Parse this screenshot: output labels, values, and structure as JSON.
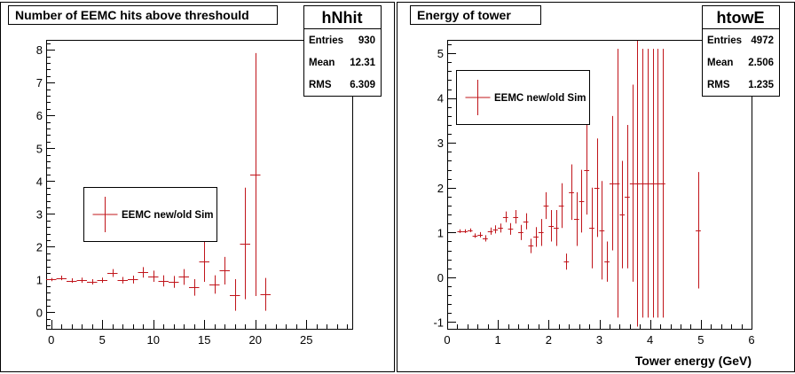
{
  "colors": {
    "marker": "#c0141a",
    "frame": "#000000",
    "background": "#ffffff"
  },
  "chart_data": [
    {
      "type": "scatter",
      "style": "histogram-with-error-bars",
      "title": "Number of EEMC hits above threshould",
      "stats_name": "hNhit",
      "stats": [
        {
          "label": "Entries",
          "value": "930"
        },
        {
          "label": "Mean",
          "value": "12.31"
        },
        {
          "label": "RMS",
          "value": "6.309"
        }
      ],
      "legend": {
        "entries": [
          "EEMC new/old Sim"
        ],
        "placement": "middle-left"
      },
      "xlabel": "",
      "ylabel": "",
      "xlim": [
        -0.5,
        29.5
      ],
      "ylim": [
        -0.5,
        8.3
      ],
      "xticks": [
        0,
        5,
        10,
        15,
        20,
        25
      ],
      "xtick_labels": [
        "0",
        "5",
        "10",
        "15",
        "20",
        "25"
      ],
      "yticks": [
        0,
        1,
        2,
        3,
        4,
        5,
        6,
        7,
        8
      ],
      "ytick_labels": [
        "0",
        "1",
        "2",
        "3",
        "4",
        "5",
        "6",
        "7",
        "8"
      ],
      "grid": false,
      "bin_width": 1,
      "series": [
        {
          "x": [
            0,
            1,
            2,
            3,
            4,
            5,
            6,
            7,
            8,
            9,
            10,
            11,
            12,
            13,
            14,
            15,
            16,
            17,
            18,
            19,
            20,
            21
          ],
          "y": [
            1.0,
            1.05,
            0.97,
            0.98,
            0.93,
            0.98,
            1.2,
            0.98,
            1.0,
            1.22,
            1.1,
            0.96,
            0.93,
            1.08,
            0.76,
            1.55,
            0.85,
            1.27,
            0.53,
            2.1,
            4.2,
            0.55
          ],
          "err": [
            0.05,
            0.07,
            0.07,
            0.08,
            0.08,
            0.08,
            0.12,
            0.1,
            0.12,
            0.16,
            0.17,
            0.17,
            0.18,
            0.24,
            0.25,
            0.62,
            0.28,
            0.42,
            0.48,
            1.7,
            3.7,
            0.5
          ]
        }
      ]
    },
    {
      "type": "scatter",
      "style": "histogram-with-error-bars",
      "title": "Energy of tower",
      "stats_name": "htowE",
      "stats": [
        {
          "label": "Entries",
          "value": "4972"
        },
        {
          "label": "Mean",
          "value": "2.506"
        },
        {
          "label": "RMS",
          "value": "1.235"
        }
      ],
      "legend": {
        "entries": [
          "EEMC new/old Sim"
        ],
        "placement": "top-left"
      },
      "xlabel": "Tower energy (GeV)",
      "ylabel": "",
      "xlim": [
        0,
        6
      ],
      "ylim": [
        -1.15,
        5.3
      ],
      "xticks": [
        0,
        1,
        2,
        3,
        4,
        5,
        6
      ],
      "xtick_labels": [
        "0",
        "1",
        "2",
        "3",
        "4",
        "5",
        "6"
      ],
      "yticks": [
        -1,
        0,
        1,
        2,
        3,
        4,
        5
      ],
      "ytick_labels": [
        "-1",
        "0",
        "1",
        "2",
        "3",
        "4",
        "5"
      ],
      "grid": false,
      "bin_width": 0.1,
      "series": [
        {
          "x": [
            0.25,
            0.35,
            0.45,
            0.55,
            0.65,
            0.75,
            0.85,
            0.95,
            1.05,
            1.15,
            1.25,
            1.35,
            1.45,
            1.55,
            1.65,
            1.75,
            1.85,
            1.95,
            2.05,
            2.15,
            2.25,
            2.35,
            2.45,
            2.55,
            2.65,
            2.75,
            2.85,
            2.95,
            3.05,
            3.15,
            3.25,
            3.35,
            3.45,
            3.55,
            3.65,
            3.75,
            3.85,
            3.95,
            4.05,
            4.15,
            4.25,
            4.95
          ],
          "y": [
            1.03,
            1.03,
            1.05,
            0.93,
            0.95,
            0.87,
            1.03,
            1.07,
            1.1,
            1.35,
            1.08,
            1.35,
            1.0,
            1.25,
            0.7,
            0.9,
            1.0,
            1.6,
            1.15,
            1.1,
            1.6,
            0.35,
            1.9,
            1.3,
            1.7,
            2.4,
            1.1,
            2.0,
            1.05,
            0.35,
            2.1,
            2.1,
            1.4,
            1.8,
            2.1,
            2.1,
            2.1,
            2.1,
            2.1,
            2.1,
            2.1,
            1.05
          ],
          "err": [
            0.04,
            0.04,
            0.04,
            0.05,
            0.06,
            0.07,
            0.08,
            0.09,
            0.1,
            0.12,
            0.13,
            0.15,
            0.17,
            0.18,
            0.16,
            0.22,
            0.3,
            0.3,
            0.35,
            0.4,
            0.5,
            0.18,
            0.62,
            0.6,
            0.7,
            1.0,
            0.9,
            1.1,
            1.1,
            0.45,
            1.5,
            3.0,
            1.2,
            1.6,
            2.2,
            3.2,
            3.0,
            3.0,
            3.0,
            3.0,
            3.0,
            1.3
          ]
        }
      ]
    }
  ]
}
